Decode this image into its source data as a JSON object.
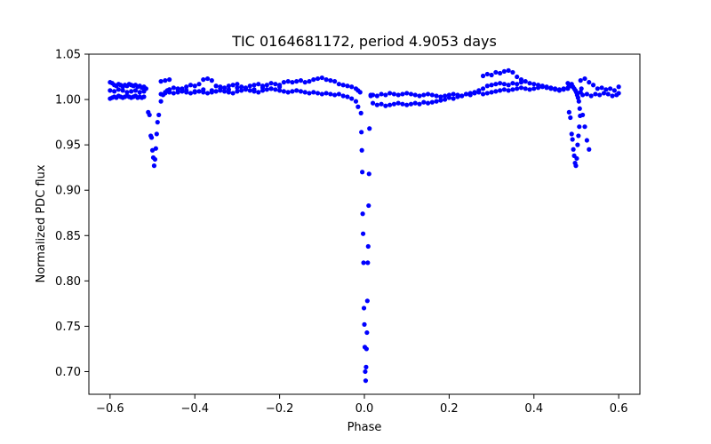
{
  "chart_data": {
    "type": "scatter",
    "title": "TIC 0164681172, period 4.9053 days",
    "xlabel": "Phase",
    "ylabel": "Normalized PDC flux",
    "xlim": [
      -0.65,
      0.65
    ],
    "ylim": [
      0.675,
      1.05
    ],
    "xticks": [
      -0.6,
      -0.4,
      -0.2,
      0.0,
      0.2,
      0.4,
      0.6
    ],
    "xtick_labels": [
      "−0.6",
      "−0.4",
      "−0.2",
      "0.0",
      "0.2",
      "0.4",
      "0.6"
    ],
    "yticks": [
      0.7,
      0.75,
      0.8,
      0.85,
      0.9,
      0.95,
      1.0,
      1.05
    ],
    "ytick_labels": [
      "0.70",
      "0.75",
      "0.80",
      "0.85",
      "0.90",
      "0.95",
      "1.00",
      "1.05"
    ],
    "grid": false,
    "marker_color": "#0000ff",
    "series": [
      {
        "x": [
          -0.6,
          -0.595,
          -0.59,
          -0.585,
          -0.58,
          -0.575,
          -0.57,
          -0.565,
          -0.56,
          -0.555,
          -0.55,
          -0.545,
          -0.54,
          -0.535,
          -0.53,
          -0.525,
          -0.52,
          -0.515,
          -0.6,
          -0.595,
          -0.59,
          -0.585,
          -0.58,
          -0.575,
          -0.57,
          -0.565,
          -0.56,
          -0.555,
          -0.55,
          -0.545,
          -0.54,
          -0.535,
          -0.53,
          -0.525,
          -0.52,
          -0.6,
          -0.59,
          -0.58,
          -0.57,
          -0.56,
          -0.55,
          -0.54,
          -0.53,
          -0.52,
          -0.51,
          -0.507,
          -0.504,
          -0.502,
          -0.5,
          -0.498,
          -0.496,
          -0.494,
          -0.492,
          -0.49,
          -0.488,
          -0.485,
          -0.48,
          -0.475,
          -0.47,
          -0.465,
          -0.46,
          -0.48,
          -0.47,
          -0.46,
          -0.45,
          -0.44,
          -0.43,
          -0.42,
          -0.41,
          -0.4,
          -0.39,
          -0.38,
          -0.37,
          -0.36,
          -0.35,
          -0.34,
          -0.33,
          -0.32,
          -0.31,
          -0.3,
          -0.29,
          -0.28,
          -0.27,
          -0.26,
          -0.25,
          -0.24,
          -0.23,
          -0.22,
          -0.21,
          -0.2,
          -0.19,
          -0.18,
          -0.17,
          -0.16,
          -0.15,
          -0.14,
          -0.13,
          -0.12,
          -0.11,
          -0.1,
          -0.09,
          -0.08,
          -0.07,
          -0.06,
          -0.05,
          -0.04,
          -0.03,
          -0.02,
          -0.015,
          -0.01,
          -0.48,
          -0.47,
          -0.46,
          -0.45,
          -0.44,
          -0.43,
          -0.42,
          -0.41,
          -0.4,
          -0.39,
          -0.38,
          -0.37,
          -0.36,
          -0.35,
          -0.34,
          -0.33,
          -0.32,
          -0.31,
          -0.3,
          -0.29,
          -0.28,
          -0.27,
          -0.26,
          -0.25,
          -0.24,
          -0.23,
          -0.22,
          -0.21,
          -0.2,
          -0.19,
          -0.18,
          -0.17,
          -0.16,
          -0.15,
          -0.14,
          -0.13,
          -0.12,
          -0.11,
          -0.1,
          -0.09,
          -0.08,
          -0.07,
          -0.06,
          -0.05,
          -0.04,
          -0.03,
          -0.02,
          -0.015,
          -0.46,
          -0.44,
          -0.42,
          -0.4,
          -0.38,
          -0.36,
          -0.34,
          -0.32,
          -0.3,
          -0.28,
          -0.26,
          -0.24,
          -0.22,
          -0.2,
          -0.008,
          -0.007,
          -0.006,
          -0.005,
          -0.004,
          -0.003,
          -0.002,
          -0.001,
          0.0,
          0.001,
          0.002,
          0.003,
          0.004,
          0.005,
          0.006,
          0.007,
          0.008,
          0.009,
          0.01,
          0.011,
          0.012,
          0.015,
          0.02,
          0.03,
          0.04,
          0.05,
          0.06,
          0.07,
          0.08,
          0.09,
          0.1,
          0.11,
          0.12,
          0.13,
          0.14,
          0.15,
          0.16,
          0.17,
          0.18,
          0.19,
          0.2,
          0.21,
          0.22,
          0.23,
          0.24,
          0.25,
          0.26,
          0.27,
          0.28,
          0.29,
          0.3,
          0.31,
          0.32,
          0.33,
          0.34,
          0.35,
          0.36,
          0.37,
          0.38,
          0.39,
          0.4,
          0.41,
          0.42,
          0.43,
          0.44,
          0.45,
          0.46,
          0.47,
          0.48,
          0.015,
          0.02,
          0.03,
          0.04,
          0.05,
          0.06,
          0.07,
          0.08,
          0.09,
          0.1,
          0.11,
          0.12,
          0.13,
          0.14,
          0.15,
          0.16,
          0.17,
          0.18,
          0.19,
          0.2,
          0.21,
          0.22,
          0.23,
          0.24,
          0.25,
          0.26,
          0.27,
          0.28,
          0.29,
          0.3,
          0.31,
          0.32,
          0.33,
          0.34,
          0.35,
          0.36,
          0.37,
          0.38,
          0.39,
          0.4,
          0.41,
          0.42,
          0.43,
          0.44,
          0.45,
          0.46,
          0.47,
          0.48,
          0.28,
          0.29,
          0.3,
          0.31,
          0.32,
          0.33,
          0.34,
          0.35,
          0.36,
          0.37,
          0.48,
          0.483,
          0.486,
          0.489,
          0.492,
          0.495,
          0.498,
          0.5,
          0.502,
          0.504,
          0.506,
          0.508,
          0.51,
          0.512,
          0.515,
          0.52,
          0.525,
          0.53,
          0.51,
          0.52,
          0.53,
          0.54,
          0.55,
          0.56,
          0.57,
          0.58,
          0.59,
          0.6,
          0.515,
          0.525,
          0.535,
          0.545,
          0.555,
          0.565,
          0.575,
          0.585,
          0.595,
          0.6
        ],
        "y": [
          1.019,
          1.018,
          1.016,
          1.015,
          1.017,
          1.016,
          1.014,
          1.016,
          1.015,
          1.017,
          1.016,
          1.015,
          1.016,
          1.014,
          1.015,
          1.013,
          1.014,
          1.012,
          1.001,
          1.002,
          1.003,
          1.002,
          1.004,
          1.003,
          1.002,
          1.003,
          1.004,
          1.003,
          1.002,
          1.003,
          1.004,
          1.002,
          1.003,
          1.002,
          1.003,
          1.01,
          1.009,
          1.011,
          1.01,
          1.008,
          1.009,
          1.01,
          1.008,
          1.009,
          0.986,
          0.983,
          0.96,
          0.958,
          0.944,
          0.936,
          0.927,
          0.934,
          0.946,
          0.962,
          0.975,
          0.983,
          0.998,
          1.005,
          1.008,
          1.01,
          1.011,
          1.02,
          1.021,
          1.022,
          1.013,
          1.011,
          1.012,
          1.014,
          1.016,
          1.015,
          1.017,
          1.022,
          1.023,
          1.021,
          1.015,
          1.014,
          1.013,
          1.015,
          1.016,
          1.017,
          1.014,
          1.013,
          1.015,
          1.016,
          1.017,
          1.015,
          1.016,
          1.018,
          1.017,
          1.016,
          1.019,
          1.02,
          1.019,
          1.02,
          1.021,
          1.019,
          1.02,
          1.022,
          1.023,
          1.024,
          1.022,
          1.021,
          1.02,
          1.017,
          1.016,
          1.015,
          1.014,
          1.012,
          1.01,
          1.008,
          1.006,
          1.007,
          1.008,
          1.007,
          1.008,
          1.009,
          1.008,
          1.007,
          1.008,
          1.009,
          1.008,
          1.007,
          1.008,
          1.009,
          1.01,
          1.009,
          1.008,
          1.007,
          1.009,
          1.01,
          1.011,
          1.01,
          1.009,
          1.008,
          1.01,
          1.011,
          1.012,
          1.011,
          1.01,
          1.009,
          1.008,
          1.009,
          1.01,
          1.009,
          1.008,
          1.007,
          1.008,
          1.007,
          1.006,
          1.007,
          1.006,
          1.005,
          1.006,
          1.004,
          1.003,
          1.001,
          0.998,
          0.992,
          1.011,
          1.012,
          1.01,
          1.009,
          1.011,
          1.01,
          1.012,
          1.011,
          1.013,
          1.012,
          1.011,
          1.013,
          1.012,
          1.014,
          0.985,
          0.964,
          0.944,
          0.92,
          0.874,
          0.852,
          0.82,
          0.77,
          0.752,
          0.727,
          0.7,
          0.69,
          0.705,
          0.725,
          0.743,
          0.778,
          0.82,
          0.838,
          0.883,
          0.918,
          0.968,
          1.005,
          0.996,
          0.994,
          0.995,
          0.993,
          0.994,
          0.995,
          0.996,
          0.995,
          0.994,
          0.995,
          0.996,
          0.995,
          0.997,
          0.996,
          0.997,
          0.998,
          0.999,
          1.0,
          1.002,
          1.001,
          1.003,
          1.004,
          1.006,
          1.005,
          1.007,
          1.008,
          1.006,
          1.007,
          1.008,
          1.009,
          1.01,
          1.011,
          1.01,
          1.011,
          1.012,
          1.013,
          1.012,
          1.011,
          1.012,
          1.013,
          1.014,
          1.013,
          1.012,
          1.011,
          1.01,
          1.011,
          1.012,
          1.004,
          1.005,
          1.004,
          1.006,
          1.005,
          1.007,
          1.006,
          1.005,
          1.006,
          1.007,
          1.006,
          1.005,
          1.004,
          1.005,
          1.006,
          1.005,
          1.004,
          1.003,
          1.004,
          1.005,
          1.006,
          1.005,
          1.004,
          1.006,
          1.007,
          1.008,
          1.01,
          1.012,
          1.015,
          1.016,
          1.017,
          1.018,
          1.017,
          1.016,
          1.018,
          1.017,
          1.019,
          1.02,
          1.018,
          1.017,
          1.016,
          1.015,
          1.014,
          1.013,
          1.012,
          1.011,
          1.012,
          1.013,
          1.026,
          1.028,
          1.027,
          1.03,
          1.029,
          1.031,
          1.032,
          1.03,
          1.025,
          1.022,
          1.018,
          1.016,
          1.015,
          1.017,
          1.014,
          1.012,
          1.01,
          1.008,
          1.005,
          1.002,
          0.998,
          0.99,
          1.008,
          1.012,
          0.983,
          0.97,
          0.955,
          0.945,
          1.021,
          1.023,
          1.019,
          1.016,
          1.012,
          1.013,
          1.011,
          1.012,
          1.01,
          1.014,
          1.005,
          1.006,
          1.004,
          1.006,
          1.005,
          1.007,
          1.006,
          1.004,
          1.005,
          1.007
        ]
      },
      {
        "x": [
          0.483,
          0.486,
          0.489,
          0.491,
          0.493,
          0.495,
          0.497,
          0.499,
          0.501,
          0.503,
          0.505,
          0.507,
          0.509
        ],
        "y": [
          0.986,
          0.98,
          0.962,
          0.956,
          0.945,
          0.938,
          0.93,
          0.927,
          0.935,
          0.95,
          0.96,
          0.97,
          0.982
        ]
      }
    ]
  }
}
